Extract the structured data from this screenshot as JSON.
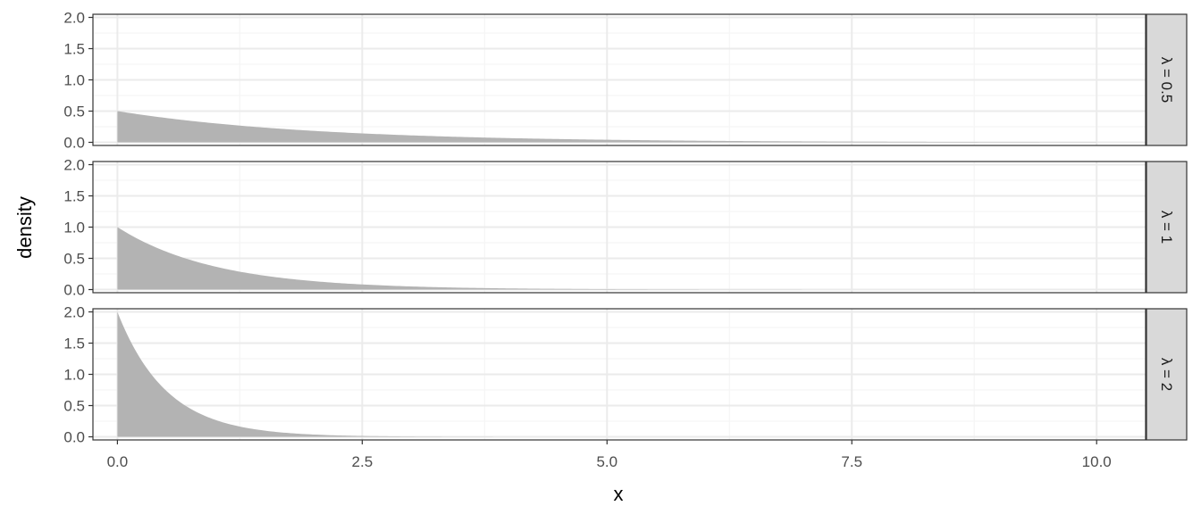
{
  "chart_data": {
    "type": "area",
    "xlabel": "x",
    "ylabel": "density",
    "xlim": [
      -0.25,
      10.5
    ],
    "ylim": [
      -0.05,
      2.05
    ],
    "x_ticks": [
      0,
      2.5,
      5,
      7.5,
      10
    ],
    "x_tick_labels": [
      "0.0",
      "2.5",
      "5.0",
      "7.5",
      "10.0"
    ],
    "x_minor_ticks": [
      1.25,
      3.75,
      6.25,
      8.75
    ],
    "y_ticks": [
      0,
      0.5,
      1,
      1.5,
      2
    ],
    "y_tick_labels": [
      "0.0",
      "0.5",
      "1.0",
      "1.5",
      "2.0"
    ],
    "y_minor_ticks": [
      0.25,
      0.75,
      1.25,
      1.75
    ],
    "grid": true,
    "facets": [
      {
        "strip_label": "λ = 0.5",
        "lambda": 0.5,
        "x": [
          0,
          0.5,
          1,
          1.5,
          2,
          2.5,
          3,
          3.5,
          4,
          4.5,
          5,
          5.5,
          6,
          6.5,
          7,
          7.5,
          8,
          8.5,
          9,
          9.5,
          10
        ],
        "y": [
          0.5,
          0.389,
          0.303,
          0.236,
          0.184,
          0.143,
          0.112,
          0.087,
          0.068,
          0.053,
          0.041,
          0.032,
          0.025,
          0.019,
          0.015,
          0.012,
          0.009,
          0.007,
          0.006,
          0.004,
          0.003
        ]
      },
      {
        "strip_label": "λ = 1",
        "lambda": 1,
        "x": [
          0,
          0.5,
          1,
          1.5,
          2,
          2.5,
          3,
          3.5,
          4,
          4.5,
          5,
          5.5,
          6,
          6.5,
          7,
          7.5,
          8,
          8.5,
          9,
          9.5,
          10
        ],
        "y": [
          1.0,
          0.607,
          0.368,
          0.223,
          0.135,
          0.082,
          0.05,
          0.03,
          0.018,
          0.011,
          0.007,
          0.004,
          0.002,
          0.002,
          0.001,
          0.001,
          0.0,
          0.0,
          0.0,
          0.0,
          0.0
        ]
      },
      {
        "strip_label": "λ = 2",
        "lambda": 2,
        "x": [
          0,
          0.5,
          1,
          1.5,
          2,
          2.5,
          3,
          3.5,
          4,
          4.5,
          5,
          5.5,
          6,
          6.5,
          7,
          7.5,
          8,
          8.5,
          9,
          9.5,
          10
        ],
        "y": [
          2.0,
          0.736,
          0.271,
          0.1,
          0.037,
          0.013,
          0.005,
          0.002,
          0.001,
          0.0,
          0.0,
          0.0,
          0.0,
          0.0,
          0.0,
          0.0,
          0.0,
          0.0,
          0.0,
          0.0,
          0.0
        ]
      }
    ],
    "colors": {
      "fill": "#b3b3b3",
      "panel_border": "#333333",
      "grid_major": "#ebebeb",
      "grid_minor": "#f5f5f5",
      "strip_fill": "#d9d9d9",
      "tick_text": "#4d4d4d",
      "axis_tick": "#333333"
    }
  }
}
